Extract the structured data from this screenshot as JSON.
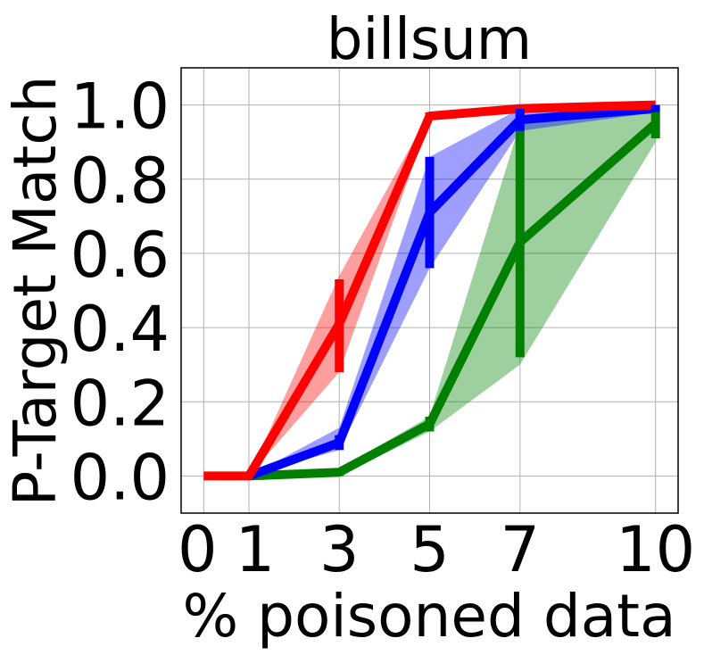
{
  "chart_data": {
    "type": "line",
    "title": "billsum",
    "xlabel": "% poisoned data",
    "ylabel": "P-Target Match",
    "x": [
      0,
      1,
      3,
      5,
      7,
      10
    ],
    "xticks": [
      "0",
      "1",
      "3",
      "5",
      "7",
      "10"
    ],
    "yticks": [
      "0.0",
      "0.2",
      "0.4",
      "0.6",
      "0.8",
      "1.0"
    ],
    "xlim": [
      -0.5,
      10.5
    ],
    "ylim": [
      -0.1,
      1.1
    ],
    "grid": true,
    "series": [
      {
        "color": "#008000",
        "x": [
          1,
          3,
          5,
          7,
          10
        ],
        "values": [
          0.0,
          0.01,
          0.14,
          0.63,
          0.95
        ],
        "band_low": [
          0.0,
          0.0,
          0.12,
          0.3,
          0.9
        ],
        "band_high": [
          0.0,
          0.02,
          0.16,
          0.95,
          0.99
        ],
        "err_low": [
          0.0,
          0.0,
          0.12,
          0.32,
          0.91
        ],
        "err_high": [
          0.0,
          0.02,
          0.16,
          0.94,
          0.98
        ]
      },
      {
        "color": "#0000ff",
        "x": [
          1,
          3,
          5,
          7,
          10
        ],
        "values": [
          0.0,
          0.09,
          0.71,
          0.96,
          0.99
        ],
        "band_low": [
          0.0,
          0.07,
          0.56,
          0.93,
          0.98
        ],
        "band_high": [
          0.0,
          0.13,
          0.86,
          0.99,
          1.0
        ],
        "err_low": [
          0.0,
          0.07,
          0.56,
          0.93,
          0.98
        ],
        "err_high": [
          0.0,
          0.11,
          0.86,
          0.99,
          1.0
        ]
      },
      {
        "color": "#ff0000",
        "x": [
          0,
          1,
          3,
          5,
          7,
          10
        ],
        "values": [
          0.0,
          0.0,
          0.41,
          0.97,
          0.99,
          1.0
        ],
        "band_low": [
          0.0,
          0.0,
          0.28,
          0.96,
          0.99,
          1.0
        ],
        "band_high": [
          0.0,
          0.0,
          0.54,
          0.98,
          1.0,
          1.0
        ],
        "err_low": [
          0.0,
          0.0,
          0.28,
          0.96,
          0.99,
          1.0
        ],
        "err_high": [
          0.0,
          0.0,
          0.53,
          0.98,
          1.0,
          1.0
        ]
      }
    ]
  }
}
